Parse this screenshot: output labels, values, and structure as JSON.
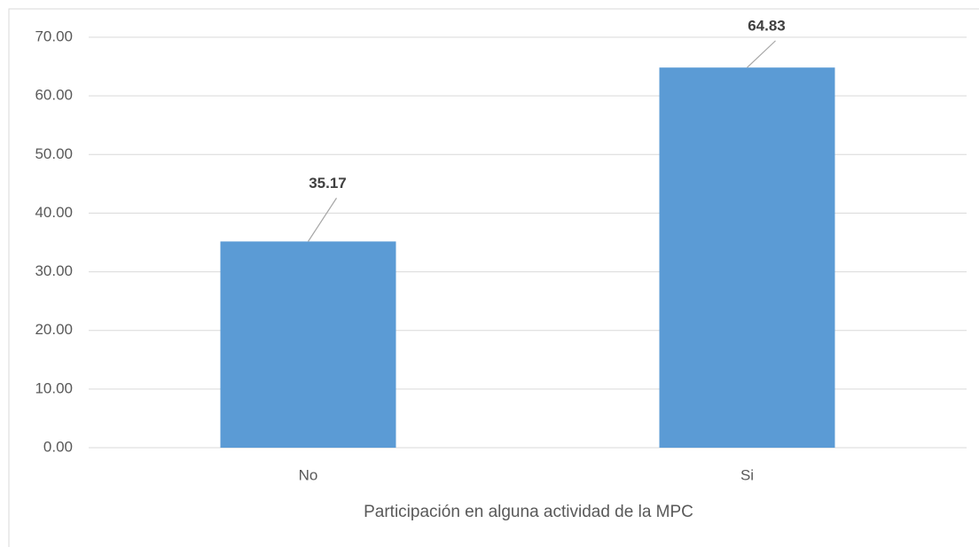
{
  "chart_data": {
    "type": "bar",
    "xlabel": "Participación en alguna actividad de la MPC",
    "categories": [
      "No",
      "Si"
    ],
    "values": [
      35.17,
      64.83
    ],
    "color": "#5b9bd5",
    "ylim": [
      0,
      70
    ],
    "yticks": [
      {
        "value": 0,
        "label": "0.00"
      },
      {
        "value": 10,
        "label": "10.00"
      },
      {
        "value": 20,
        "label": "20.00"
      },
      {
        "value": 30,
        "label": "30.00"
      },
      {
        "value": 40,
        "label": "40.00"
      },
      {
        "value": 50,
        "label": "50.00"
      },
      {
        "value": 60,
        "label": "60.00"
      },
      {
        "value": 70,
        "label": "70.00"
      }
    ],
    "grid": true
  }
}
